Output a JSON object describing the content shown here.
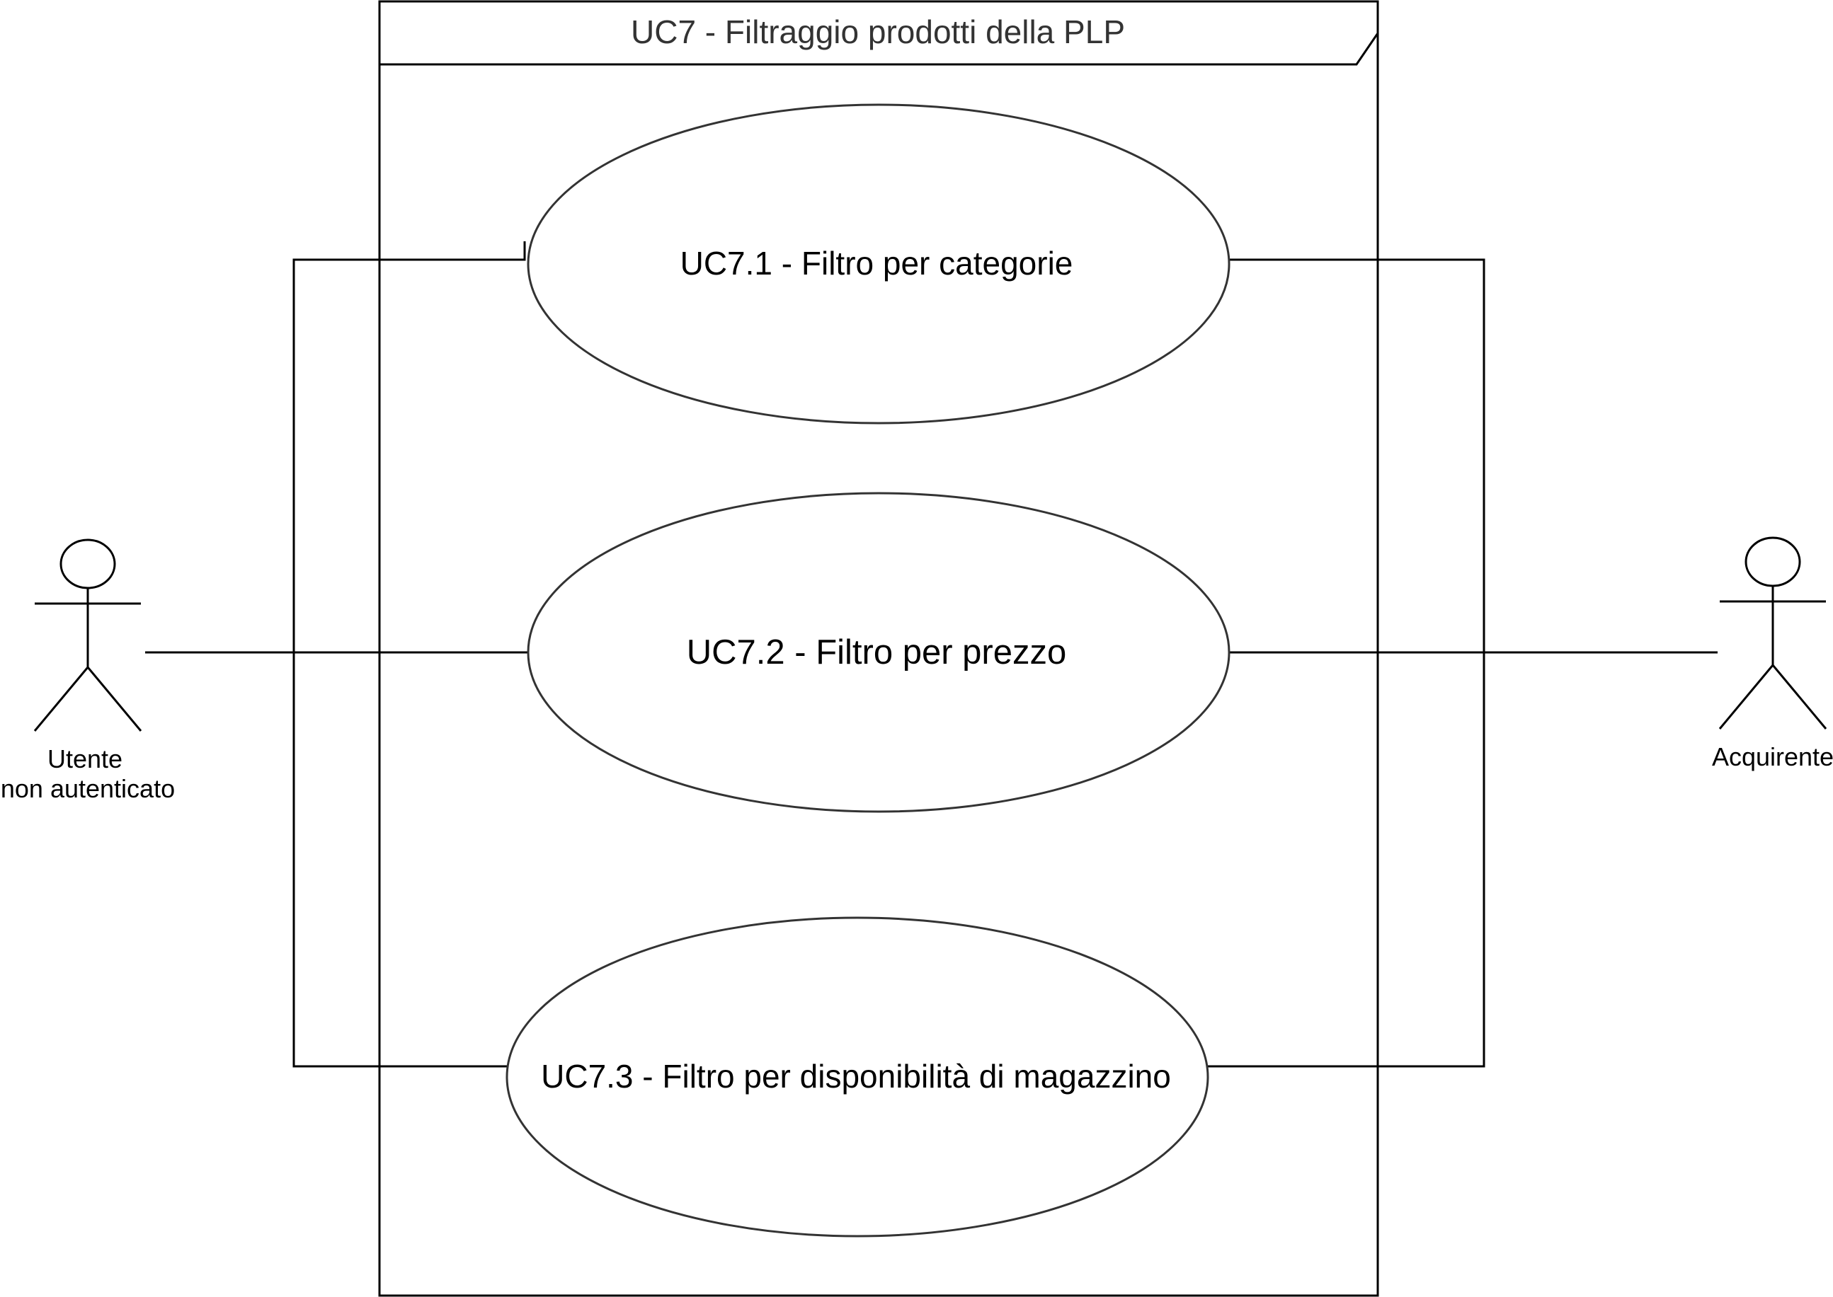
{
  "frame": {
    "title": "UC7 - Filtraggio prodotti della PLP"
  },
  "use_cases": [
    {
      "id": "uc7-1",
      "label": "UC7.1 - Filtro per categorie"
    },
    {
      "id": "uc7-2",
      "label": "UC7.2 - Filtro per prezzo"
    },
    {
      "id": "uc7-3",
      "label": "UC7.3 - Filtro per disponibilità di magazzino"
    }
  ],
  "actors": [
    {
      "id": "unauth",
      "label_lines": [
        "Utente",
        "non autenticato"
      ]
    },
    {
      "id": "buyer",
      "label_lines": [
        "Acquirente"
      ]
    }
  ],
  "colors": {
    "stroke": "#000000",
    "ellipse_stroke": "#333333",
    "title_text": "#333333",
    "background": "#ffffff"
  }
}
